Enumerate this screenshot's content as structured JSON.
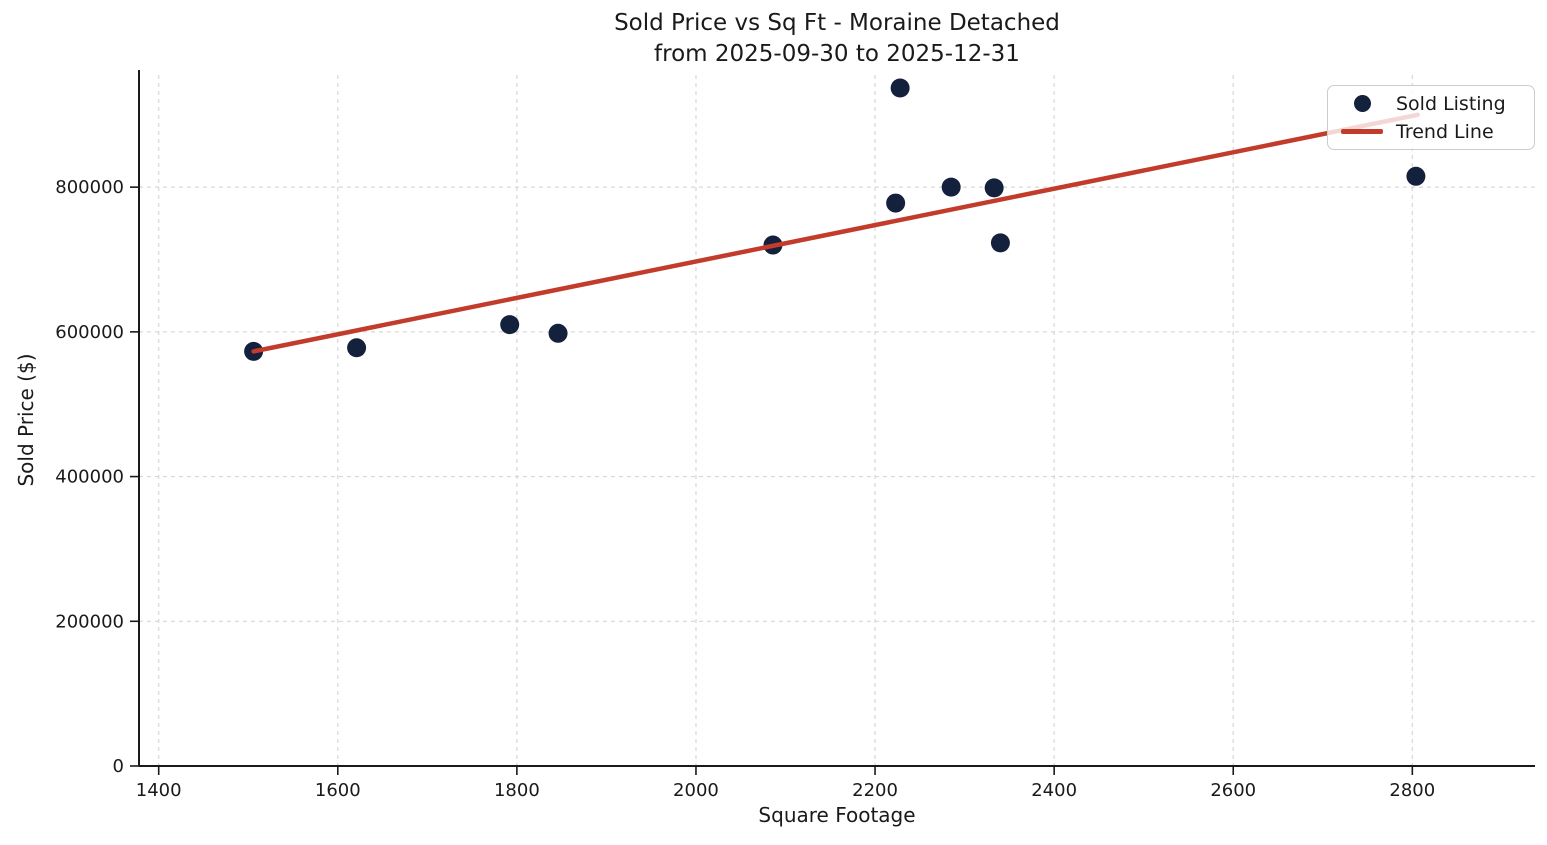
{
  "chart_data": {
    "type": "scatter",
    "title": "Sold Price vs Sq Ft - Moraine Detached",
    "subtitle": "from 2025-09-30 to 2025-12-31",
    "xlabel": "Square Footage",
    "ylabel": "Sold Price ($)",
    "xlim": [
      1378,
      2937
    ],
    "ylim": [
      0,
      955000
    ],
    "xticks": [
      1400,
      1600,
      1800,
      2000,
      2200,
      2400,
      2600,
      2800
    ],
    "yticks": [
      0,
      200000,
      400000,
      600000,
      800000
    ],
    "grid": true,
    "legend_position": "upper right",
    "series": [
      {
        "name": "Sold Listing",
        "type": "scatter",
        "color": "#14213d",
        "points": [
          [
            1506,
            573000
          ],
          [
            1621,
            578000
          ],
          [
            1792,
            610000
          ],
          [
            1846,
            598000
          ],
          [
            2086,
            720000
          ],
          [
            2223,
            778000
          ],
          [
            2228,
            937000
          ],
          [
            2285,
            800000
          ],
          [
            2333,
            799000
          ],
          [
            2340,
            723000
          ],
          [
            2804,
            815000
          ]
        ]
      },
      {
        "name": "Trend Line",
        "type": "line",
        "color": "#c23b2b",
        "points": [
          [
            1506,
            573000
          ],
          [
            2806,
            900000
          ]
        ]
      }
    ],
    "legend": {
      "entries": [
        {
          "label": "Sold Listing",
          "marker": "dot",
          "color": "#14213d"
        },
        {
          "label": "Trend Line",
          "marker": "line",
          "color": "#c23b2b"
        }
      ]
    }
  },
  "colors": {
    "scatter": "#14213d",
    "trend": "#c23b2b",
    "grid": "#d7d7d7",
    "spine": "#1a1a1a",
    "tick_text": "#1a1a1a",
    "legend_border": "#cccccc"
  }
}
